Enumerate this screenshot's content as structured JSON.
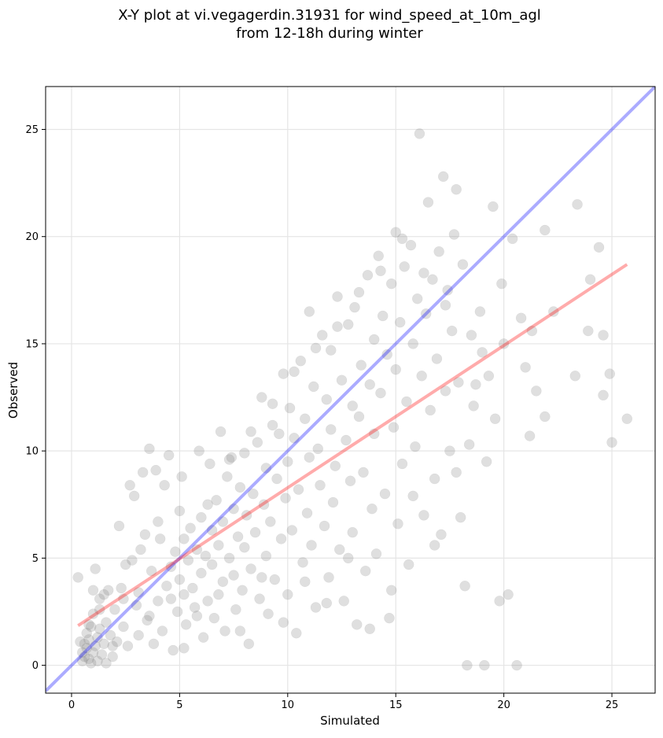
{
  "chart_data": {
    "type": "scatter",
    "title": {
      "line1": "X-Y plot at vi.vegagerdin.31931 for wind_speed_at_10m_agl",
      "line2": "from 12-18h during winter"
    },
    "xlabel": "Simulated",
    "ylabel": "Observed",
    "xlim": [
      -1.2,
      27.0
    ],
    "ylim": [
      -1.3,
      27.0
    ],
    "xticks": [
      0,
      5,
      10,
      15,
      20,
      25
    ],
    "yticks": [
      0,
      5,
      10,
      15,
      20,
      25
    ],
    "grid": true,
    "marker_color": "#808080",
    "identity_line": {
      "color": "#0000ff",
      "x": [
        -1.2,
        27.0
      ],
      "y": [
        -1.2,
        27.0
      ]
    },
    "fit_line": {
      "color": "#ff0000",
      "x": [
        0.3,
        25.7
      ],
      "y": [
        1.85,
        18.7
      ]
    },
    "points": [
      [
        0.3,
        4.1
      ],
      [
        0.4,
        1.1
      ],
      [
        0.5,
        0.6
      ],
      [
        0.5,
        0.2
      ],
      [
        0.6,
        1.0
      ],
      [
        0.6,
        0.4
      ],
      [
        0.7,
        0.8
      ],
      [
        0.7,
        1.5
      ],
      [
        0.8,
        0.3
      ],
      [
        0.8,
        1.2
      ],
      [
        0.9,
        0.1
      ],
      [
        0.9,
        1.8
      ],
      [
        1.0,
        0.6
      ],
      [
        1.0,
        3.5
      ],
      [
        1.0,
        2.4
      ],
      [
        1.1,
        0.9
      ],
      [
        1.1,
        4.5
      ],
      [
        1.2,
        1.3
      ],
      [
        1.2,
        0.2
      ],
      [
        1.3,
        3.1
      ],
      [
        1.3,
        1.7
      ],
      [
        1.4,
        0.5
      ],
      [
        1.5,
        3.3
      ],
      [
        1.5,
        1.0
      ],
      [
        1.6,
        0.1
      ],
      [
        1.6,
        2.0
      ],
      [
        1.7,
        3.5
      ],
      [
        1.8,
        1.4
      ],
      [
        1.9,
        0.4
      ],
      [
        2.0,
        2.6
      ],
      [
        2.1,
        1.1
      ],
      [
        2.2,
        6.5
      ],
      [
        2.3,
        3.6
      ],
      [
        2.4,
        1.8
      ],
      [
        2.5,
        4.7
      ],
      [
        2.6,
        0.9
      ],
      [
        2.7,
        8.4
      ],
      [
        2.8,
        4.9
      ],
      [
        2.9,
        7.9
      ],
      [
        3.0,
        2.8
      ],
      [
        3.1,
        3.4
      ],
      [
        3.2,
        5.4
      ],
      [
        3.3,
        9.0
      ],
      [
        3.4,
        6.1
      ],
      [
        3.5,
        2.1
      ],
      [
        3.6,
        10.1
      ],
      [
        3.7,
        4.4
      ],
      [
        3.8,
        1.0
      ],
      [
        3.9,
        9.1
      ],
      [
        4.0,
        3.0
      ],
      [
        4.1,
        5.9
      ],
      [
        4.2,
        1.6
      ],
      [
        4.3,
        8.4
      ],
      [
        4.4,
        3.7
      ],
      [
        4.5,
        9.8
      ],
      [
        4.6,
        4.6
      ],
      [
        4.7,
        0.7
      ],
      [
        4.8,
        5.3
      ],
      [
        4.9,
        2.5
      ],
      [
        5.0,
        7.2
      ],
      [
        5.0,
        4.0
      ],
      [
        5.1,
        8.8
      ],
      [
        5.2,
        3.3
      ],
      [
        5.2,
        5.9
      ],
      [
        5.3,
        1.9
      ],
      [
        5.4,
        4.9
      ],
      [
        5.5,
        6.4
      ],
      [
        5.6,
        3.6
      ],
      [
        5.7,
        2.7
      ],
      [
        5.8,
        5.4
      ],
      [
        5.9,
        10.0
      ],
      [
        6.0,
        4.3
      ],
      [
        6.0,
        6.9
      ],
      [
        6.1,
        1.3
      ],
      [
        6.2,
        5.1
      ],
      [
        6.3,
        3.0
      ],
      [
        6.4,
        9.4
      ],
      [
        6.5,
        6.3
      ],
      [
        6.5,
        4.7
      ],
      [
        6.6,
        2.2
      ],
      [
        6.7,
        7.7
      ],
      [
        6.8,
        5.6
      ],
      [
        6.9,
        10.9
      ],
      [
        7.0,
        3.9
      ],
      [
        7.0,
        6.7
      ],
      [
        7.1,
        1.6
      ],
      [
        7.2,
        8.8
      ],
      [
        7.3,
        5.0
      ],
      [
        7.4,
        9.7
      ],
      [
        7.5,
        4.2
      ],
      [
        7.5,
        7.3
      ],
      [
        7.6,
        2.6
      ],
      [
        7.7,
        6.0
      ],
      [
        7.8,
        8.3
      ],
      [
        7.9,
        3.5
      ],
      [
        8.0,
        5.5
      ],
      [
        8.0,
        9.9
      ],
      [
        8.1,
        7.0
      ],
      [
        8.2,
        1.0
      ],
      [
        8.3,
        4.5
      ],
      [
        8.4,
        8.0
      ],
      [
        8.5,
        6.2
      ],
      [
        8.6,
        10.4
      ],
      [
        8.7,
        3.1
      ],
      [
        8.8,
        12.5
      ],
      [
        8.9,
        7.5
      ],
      [
        9.0,
        5.1
      ],
      [
        9.0,
        9.2
      ],
      [
        9.1,
        2.4
      ],
      [
        9.2,
        6.7
      ],
      [
        9.3,
        11.2
      ],
      [
        9.4,
        4.0
      ],
      [
        9.5,
        8.7
      ],
      [
        9.6,
        10.8
      ],
      [
        9.7,
        5.9
      ],
      [
        9.8,
        13.6
      ],
      [
        9.9,
        7.8
      ],
      [
        10.0,
        3.3
      ],
      [
        10.0,
        9.5
      ],
      [
        10.1,
        12.0
      ],
      [
        10.2,
        6.3
      ],
      [
        10.3,
        10.6
      ],
      [
        10.4,
        1.5
      ],
      [
        10.5,
        8.2
      ],
      [
        10.6,
        14.2
      ],
      [
        10.7,
        4.8
      ],
      [
        10.8,
        11.5
      ],
      [
        10.9,
        7.1
      ],
      [
        11.0,
        16.5
      ],
      [
        11.0,
        9.7
      ],
      [
        11.1,
        5.6
      ],
      [
        11.2,
        13.0
      ],
      [
        11.3,
        2.7
      ],
      [
        11.4,
        10.1
      ],
      [
        11.5,
        8.4
      ],
      [
        11.6,
        15.4
      ],
      [
        11.7,
        6.5
      ],
      [
        11.8,
        12.4
      ],
      [
        11.9,
        4.1
      ],
      [
        12.0,
        11.0
      ],
      [
        12.0,
        14.7
      ],
      [
        12.1,
        7.6
      ],
      [
        12.2,
        9.3
      ],
      [
        12.3,
        17.2
      ],
      [
        12.4,
        5.4
      ],
      [
        12.5,
        13.3
      ],
      [
        12.6,
        3.0
      ],
      [
        12.7,
        10.5
      ],
      [
        12.8,
        15.9
      ],
      [
        12.9,
        8.6
      ],
      [
        13.0,
        12.1
      ],
      [
        13.0,
        6.2
      ],
      [
        13.1,
        16.7
      ],
      [
        13.2,
        1.9
      ],
      [
        13.3,
        11.6
      ],
      [
        13.4,
        14.0
      ],
      [
        13.5,
        9.0
      ],
      [
        13.6,
        4.4
      ],
      [
        13.7,
        18.2
      ],
      [
        13.8,
        13.1
      ],
      [
        13.9,
        7.3
      ],
      [
        14.0,
        15.2
      ],
      [
        14.0,
        10.8
      ],
      [
        14.1,
        5.2
      ],
      [
        14.2,
        19.1
      ],
      [
        14.3,
        12.7
      ],
      [
        14.4,
        16.3
      ],
      [
        14.5,
        8.0
      ],
      [
        14.6,
        14.5
      ],
      [
        14.7,
        2.2
      ],
      [
        14.8,
        17.8
      ],
      [
        14.9,
        11.1
      ],
      [
        15.0,
        20.2
      ],
      [
        15.0,
        13.8
      ],
      [
        15.1,
        6.6
      ],
      [
        15.2,
        16.0
      ],
      [
        15.3,
        9.4
      ],
      [
        15.4,
        18.6
      ],
      [
        15.5,
        12.3
      ],
      [
        15.6,
        4.7
      ],
      [
        15.7,
        19.6
      ],
      [
        15.8,
        15.0
      ],
      [
        15.9,
        10.2
      ],
      [
        16.0,
        17.1
      ],
      [
        16.1,
        24.8
      ],
      [
        16.2,
        13.5
      ],
      [
        16.3,
        7.0
      ],
      [
        16.4,
        16.4
      ],
      [
        16.5,
        21.6
      ],
      [
        16.6,
        11.9
      ],
      [
        16.7,
        18.0
      ],
      [
        16.8,
        8.7
      ],
      [
        16.9,
        14.3
      ],
      [
        17.0,
        19.3
      ],
      [
        17.1,
        6.1
      ],
      [
        17.2,
        22.8
      ],
      [
        17.3,
        12.8
      ],
      [
        17.4,
        17.5
      ],
      [
        17.5,
        10.0
      ],
      [
        17.6,
        15.6
      ],
      [
        17.7,
        20.1
      ],
      [
        17.8,
        22.2
      ],
      [
        17.9,
        13.2
      ],
      [
        18.0,
        6.9
      ],
      [
        18.2,
        3.7
      ],
      [
        18.3,
        0.0
      ],
      [
        18.4,
        10.3
      ],
      [
        18.5,
        15.4
      ],
      [
        18.7,
        13.1
      ],
      [
        18.9,
        16.5
      ],
      [
        19.1,
        0.0
      ],
      [
        19.2,
        9.5
      ],
      [
        19.3,
        13.5
      ],
      [
        19.5,
        21.4
      ],
      [
        19.6,
        11.5
      ],
      [
        19.8,
        3.0
      ],
      [
        20.0,
        15.0
      ],
      [
        20.2,
        3.3
      ],
      [
        20.4,
        19.9
      ],
      [
        20.6,
        0.0
      ],
      [
        20.8,
        16.2
      ],
      [
        21.0,
        13.9
      ],
      [
        21.3,
        15.6
      ],
      [
        21.5,
        12.8
      ],
      [
        21.9,
        20.3
      ],
      [
        21.9,
        11.6
      ],
      [
        23.3,
        13.5
      ],
      [
        23.4,
        21.5
      ],
      [
        23.9,
        15.6
      ],
      [
        24.0,
        18.0
      ],
      [
        24.4,
        19.5
      ],
      [
        24.6,
        12.6
      ],
      [
        24.6,
        15.4
      ],
      [
        24.9,
        13.6
      ],
      [
        25.0,
        10.4
      ],
      [
        25.7,
        11.5
      ],
      [
        0.8,
        1.9
      ],
      [
        1.3,
        2.6
      ],
      [
        1.9,
        0.9
      ],
      [
        2.4,
        3.1
      ],
      [
        3.1,
        1.4
      ],
      [
        3.6,
        2.3
      ],
      [
        4.0,
        6.7
      ],
      [
        4.6,
        3.1
      ],
      [
        5.2,
        0.8
      ],
      [
        5.8,
        2.3
      ],
      [
        6.3,
        7.5
      ],
      [
        6.8,
        3.3
      ],
      [
        7.3,
        9.6
      ],
      [
        7.8,
        1.6
      ],
      [
        8.3,
        10.9
      ],
      [
        8.8,
        4.1
      ],
      [
        9.3,
        12.2
      ],
      [
        9.8,
        2.0
      ],
      [
        10.3,
        13.7
      ],
      [
        10.8,
        3.9
      ],
      [
        11.3,
        14.8
      ],
      [
        11.8,
        2.9
      ],
      [
        12.3,
        15.8
      ],
      [
        12.8,
        5.0
      ],
      [
        13.3,
        17.4
      ],
      [
        13.8,
        1.7
      ],
      [
        14.3,
        18.4
      ],
      [
        14.8,
        3.5
      ],
      [
        15.3,
        19.9
      ],
      [
        15.8,
        7.9
      ],
      [
        16.3,
        18.3
      ],
      [
        16.8,
        5.6
      ],
      [
        17.3,
        16.8
      ],
      [
        17.8,
        9.0
      ],
      [
        18.1,
        18.7
      ],
      [
        18.6,
        12.1
      ],
      [
        19.0,
        14.6
      ],
      [
        19.9,
        17.8
      ],
      [
        21.2,
        10.7
      ],
      [
        22.3,
        16.5
      ]
    ]
  }
}
